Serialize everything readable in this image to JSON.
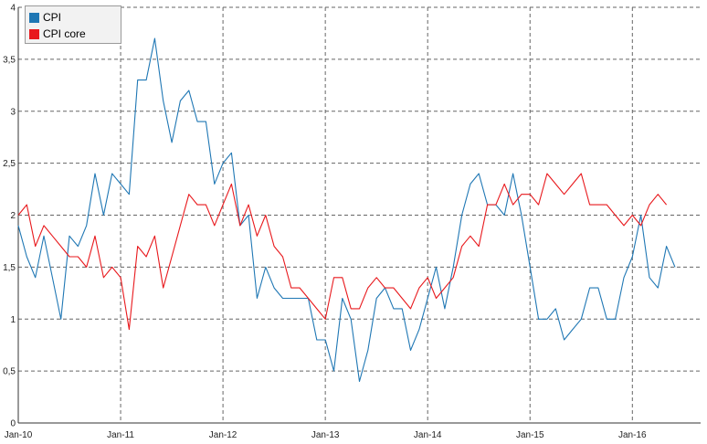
{
  "chart_data": {
    "type": "line",
    "title": "",
    "xlabel": "",
    "ylabel": "",
    "ylim": [
      0,
      4
    ],
    "y_ticks": [
      "0",
      "0,5",
      "1",
      "1,5",
      "2",
      "2,5",
      "3",
      "3,5",
      "4"
    ],
    "x_tick_labels": [
      "Jan-10",
      "Jan-11",
      "Jan-12",
      "Jan-13",
      "Jan-14",
      "Jan-15",
      "Jan-16"
    ],
    "x_tick_months": [
      0,
      12,
      24,
      36,
      48,
      60,
      72
    ],
    "x_range_months": [
      0,
      80
    ],
    "grid": true,
    "legend_position": "top-left",
    "series": [
      {
        "name": "CPI",
        "color": "#1f77b4",
        "values": [
          1.9,
          1.6,
          1.4,
          1.8,
          1.4,
          1.0,
          1.8,
          1.7,
          1.9,
          2.4,
          2.0,
          2.4,
          2.3,
          2.2,
          3.3,
          3.3,
          3.7,
          3.1,
          2.7,
          3.1,
          3.2,
          2.9,
          2.9,
          2.3,
          2.5,
          2.6,
          1.9,
          2.0,
          1.2,
          1.5,
          1.3,
          1.2,
          1.2,
          1.2,
          1.2,
          0.8,
          0.8,
          0.5,
          1.2,
          1.0,
          0.4,
          0.7,
          1.2,
          1.3,
          1.1,
          1.1,
          0.7,
          0.9,
          1.2,
          1.5,
          1.1,
          1.5,
          2.0,
          2.3,
          2.4,
          2.1,
          2.1,
          2.0,
          2.4,
          2.0,
          1.5,
          1.0,
          1.0,
          1.1,
          0.8,
          0.9,
          1.0,
          1.3,
          1.3,
          1.0,
          1.0,
          1.4,
          1.6,
          2.0,
          1.4,
          1.3,
          1.7,
          1.5
        ]
      },
      {
        "name": "CPI core",
        "color": "#e8181c",
        "values": [
          2.0,
          2.1,
          1.7,
          1.9,
          1.8,
          1.7,
          1.6,
          1.6,
          1.5,
          1.8,
          1.4,
          1.5,
          1.4,
          0.9,
          1.7,
          1.6,
          1.8,
          1.3,
          1.6,
          1.9,
          2.2,
          2.1,
          2.1,
          1.9,
          2.1,
          2.3,
          1.9,
          2.1,
          1.8,
          2.0,
          1.7,
          1.6,
          1.3,
          1.3,
          1.2,
          1.1,
          1.0,
          1.4,
          1.4,
          1.1,
          1.1,
          1.3,
          1.4,
          1.3,
          1.3,
          1.2,
          1.1,
          1.3,
          1.4,
          1.2,
          1.3,
          1.4,
          1.7,
          1.8,
          1.7,
          2.1,
          2.1,
          2.3,
          2.1,
          2.2,
          2.2,
          2.1,
          2.4,
          2.3,
          2.2,
          2.3,
          2.4,
          2.1,
          2.1,
          2.1,
          2.0,
          1.9,
          2.0,
          1.9,
          2.1,
          2.2,
          2.1
        ]
      }
    ]
  }
}
